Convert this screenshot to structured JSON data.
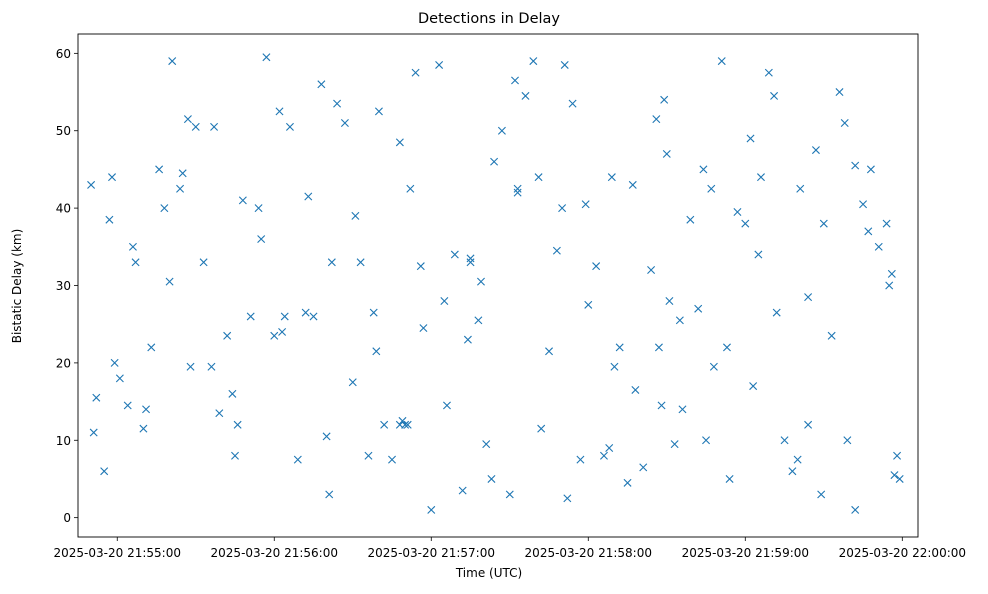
{
  "chart_data": {
    "type": "scatter",
    "title": "Detections in Delay",
    "xlabel": "Time (UTC)",
    "ylabel": "Bistatic Delay (km)",
    "x_tick_labels": [
      "2025-03-20 21:55:00",
      "2025-03-20 21:56:00",
      "2025-03-20 21:57:00",
      "2025-03-20 21:58:00",
      "2025-03-20 21:59:00",
      "2025-03-20 22:00:00"
    ],
    "y_ticks": [
      0,
      10,
      20,
      30,
      40,
      50,
      60
    ],
    "xlim": [
      "2025-03-20 21:54:45",
      "2025-03-20 22:00:06"
    ],
    "ylim": [
      -2.5,
      62.5
    ],
    "marker": "x",
    "grid": false,
    "legend": "none",
    "colors": {
      "marker": "#1f77b4"
    },
    "series": [
      {
        "x": [
          "2025-03-20 21:54:50",
          "2025-03-20 21:54:52",
          "2025-03-20 21:54:55",
          "2025-03-20 21:54:57",
          "2025-03-20 21:54:59",
          "2025-03-20 21:55:04",
          "2025-03-20 21:55:07",
          "2025-03-20 21:55:10",
          "2025-03-20 21:55:13",
          "2025-03-20 21:55:16",
          "2025-03-20 21:55:18",
          "2025-03-20 21:55:21",
          "2025-03-20 21:55:24",
          "2025-03-20 21:55:27",
          "2025-03-20 21:55:30",
          "2025-03-20 21:55:33",
          "2025-03-20 21:55:36",
          "2025-03-20 21:55:39",
          "2025-03-20 21:55:42",
          "2025-03-20 21:55:45",
          "2025-03-20 21:55:48",
          "2025-03-20 21:55:51",
          "2025-03-20 21:55:54",
          "2025-03-20 21:55:57",
          "2025-03-20 21:56:00",
          "2025-03-20 21:56:03",
          "2025-03-20 21:56:06",
          "2025-03-20 21:56:09",
          "2025-03-20 21:56:12",
          "2025-03-20 21:56:15",
          "2025-03-20 21:56:18",
          "2025-03-20 21:56:21",
          "2025-03-20 21:56:24",
          "2025-03-20 21:56:27",
          "2025-03-20 21:56:30",
          "2025-03-20 21:56:33",
          "2025-03-20 21:56:36",
          "2025-03-20 21:56:39",
          "2025-03-20 21:56:42",
          "2025-03-20 21:56:45",
          "2025-03-20 21:56:48",
          "2025-03-20 21:56:51",
          "2025-03-20 21:56:54",
          "2025-03-20 21:56:57",
          "2025-03-20 21:57:00",
          "2025-03-20 21:57:03",
          "2025-03-20 21:57:06",
          "2025-03-20 21:57:09",
          "2025-03-20 21:57:12",
          "2025-03-20 21:57:15",
          "2025-03-20 21:57:18",
          "2025-03-20 21:57:21",
          "2025-03-20 21:57:24",
          "2025-03-20 21:57:27",
          "2025-03-20 21:57:30",
          "2025-03-20 21:57:33",
          "2025-03-20 21:57:36",
          "2025-03-20 21:57:39",
          "2025-03-20 21:57:42",
          "2025-03-20 21:57:45",
          "2025-03-20 21:57:48",
          "2025-03-20 21:57:51",
          "2025-03-20 21:57:54",
          "2025-03-20 21:57:57",
          "2025-03-20 21:58:00",
          "2025-03-20 21:58:03",
          "2025-03-20 21:58:06",
          "2025-03-20 21:58:09",
          "2025-03-20 21:58:12",
          "2025-03-20 21:58:15",
          "2025-03-20 21:58:18",
          "2025-03-20 21:58:21",
          "2025-03-20 21:58:24",
          "2025-03-20 21:58:27",
          "2025-03-20 21:58:30",
          "2025-03-20 21:58:33",
          "2025-03-20 21:58:36",
          "2025-03-20 21:58:39",
          "2025-03-20 21:58:42",
          "2025-03-20 21:58:45",
          "2025-03-20 21:58:48",
          "2025-03-20 21:58:51",
          "2025-03-20 21:58:54",
          "2025-03-20 21:58:57",
          "2025-03-20 21:59:00",
          "2025-03-20 21:59:03",
          "2025-03-20 21:59:06",
          "2025-03-20 21:59:09",
          "2025-03-20 21:59:12",
          "2025-03-20 21:59:15",
          "2025-03-20 21:59:18",
          "2025-03-20 21:59:21",
          "2025-03-20 21:59:24",
          "2025-03-20 21:59:27",
          "2025-03-20 21:59:30",
          "2025-03-20 21:59:33",
          "2025-03-20 21:59:36",
          "2025-03-20 21:59:39",
          "2025-03-20 21:59:42",
          "2025-03-20 21:59:45",
          "2025-03-20 21:59:48",
          "2025-03-20 21:59:51",
          "2025-03-20 21:59:54",
          "2025-03-20 21:59:57",
          "2025-03-20 21:54:51",
          "2025-03-20 21:54:58",
          "2025-03-20 21:55:01",
          "2025-03-20 21:55:11",
          "2025-03-20 21:55:20",
          "2025-03-20 21:55:28",
          "2025-03-20 21:55:37",
          "2025-03-20 21:55:46",
          "2025-03-20 21:55:55",
          "2025-03-20 21:56:04",
          "2025-03-20 21:56:13",
          "2025-03-20 21:56:22",
          "2025-03-20 21:56:31",
          "2025-03-20 21:56:40",
          "2025-03-20 21:56:48",
          "2025-03-20 21:56:49",
          "2025-03-20 21:56:50",
          "2025-03-20 21:56:52",
          "2025-03-20 21:57:05",
          "2025-03-20 21:57:14",
          "2025-03-20 21:57:19",
          "2025-03-20 21:57:23",
          "2025-03-20 21:57:32",
          "2025-03-20 21:57:41",
          "2025-03-20 21:57:50",
          "2025-03-20 21:57:59",
          "2025-03-20 21:58:08",
          "2025-03-20 21:58:17",
          "2025-03-20 21:58:26",
          "2025-03-20 21:58:28",
          "2025-03-20 21:58:31",
          "2025-03-20 21:58:35",
          "2025-03-20 21:58:44",
          "2025-03-20 21:58:53",
          "2025-03-20 21:59:02",
          "2025-03-20 21:59:11",
          "2025-03-20 21:59:20",
          "2025-03-20 21:59:29",
          "2025-03-20 21:59:38",
          "2025-03-20 21:59:47",
          "2025-03-20 21:55:06",
          "2025-03-20 21:55:25",
          "2025-03-20 21:55:44",
          "2025-03-20 21:56:02",
          "2025-03-20 21:56:20",
          "2025-03-20 21:56:38",
          "2025-03-20 21:56:56",
          "2025-03-20 21:57:15",
          "2025-03-20 21:57:33",
          "2025-03-20 21:57:52",
          "2025-03-20 21:58:10",
          "2025-03-20 21:58:29",
          "2025-03-20 21:58:47",
          "2025-03-20 21:59:05",
          "2025-03-20 21:59:24",
          "2025-03-20 21:59:42",
          "2025-03-20 21:59:56",
          "2025-03-20 21:59:58",
          "2025-03-20 21:59:59",
          "2025-03-20 21:59:55"
        ],
        "y": [
          43,
          15.5,
          6,
          38.5,
          20,
          14.5,
          33,
          11.5,
          22,
          45,
          40,
          59,
          42.5,
          51.5,
          50.5,
          33,
          19.5,
          13.5,
          23.5,
          8,
          41,
          26,
          40,
          59.5,
          23.5,
          24,
          50.5,
          7.5,
          26.5,
          26,
          56,
          3,
          53.5,
          51,
          17.5,
          33,
          8,
          21.5,
          12,
          7.5,
          48.5,
          12,
          57.5,
          24.5,
          1,
          58.5,
          14.5,
          34,
          3.5,
          33,
          25.5,
          9.5,
          46,
          50,
          3,
          42,
          54.5,
          59,
          11.5,
          21.5,
          34.5,
          58.5,
          53.5,
          7.5,
          27.5,
          32.5,
          8,
          44,
          22,
          4.5,
          16.5,
          6.5,
          32,
          22,
          47,
          9.5,
          14,
          38.5,
          27,
          10,
          19.5,
          59,
          5,
          39.5,
          38,
          17,
          44,
          57.5,
          26.5,
          10,
          6,
          42.5,
          12,
          47.5,
          38,
          23.5,
          55,
          10,
          1,
          40.5,
          45,
          35,
          38,
          5.5,
          11,
          44,
          18,
          14,
          30.5,
          19.5,
          50.5,
          12,
          36,
          26,
          41.5,
          33,
          39,
          52.5,
          12,
          12.5,
          12,
          42.5,
          28,
          23,
          30.5,
          5,
          56.5,
          44,
          40,
          40.5,
          9,
          43,
          51.5,
          14.5,
          28,
          25.5,
          45,
          22,
          49,
          54.5,
          7.5,
          3,
          51,
          37,
          35,
          44.5,
          16,
          52.5,
          10.5,
          26.5,
          32.5,
          33.5,
          42.5,
          2.5,
          19.5,
          54,
          42.5,
          34,
          28.5,
          45.5,
          31.5,
          8,
          5,
          30
        ]
      }
    ]
  }
}
